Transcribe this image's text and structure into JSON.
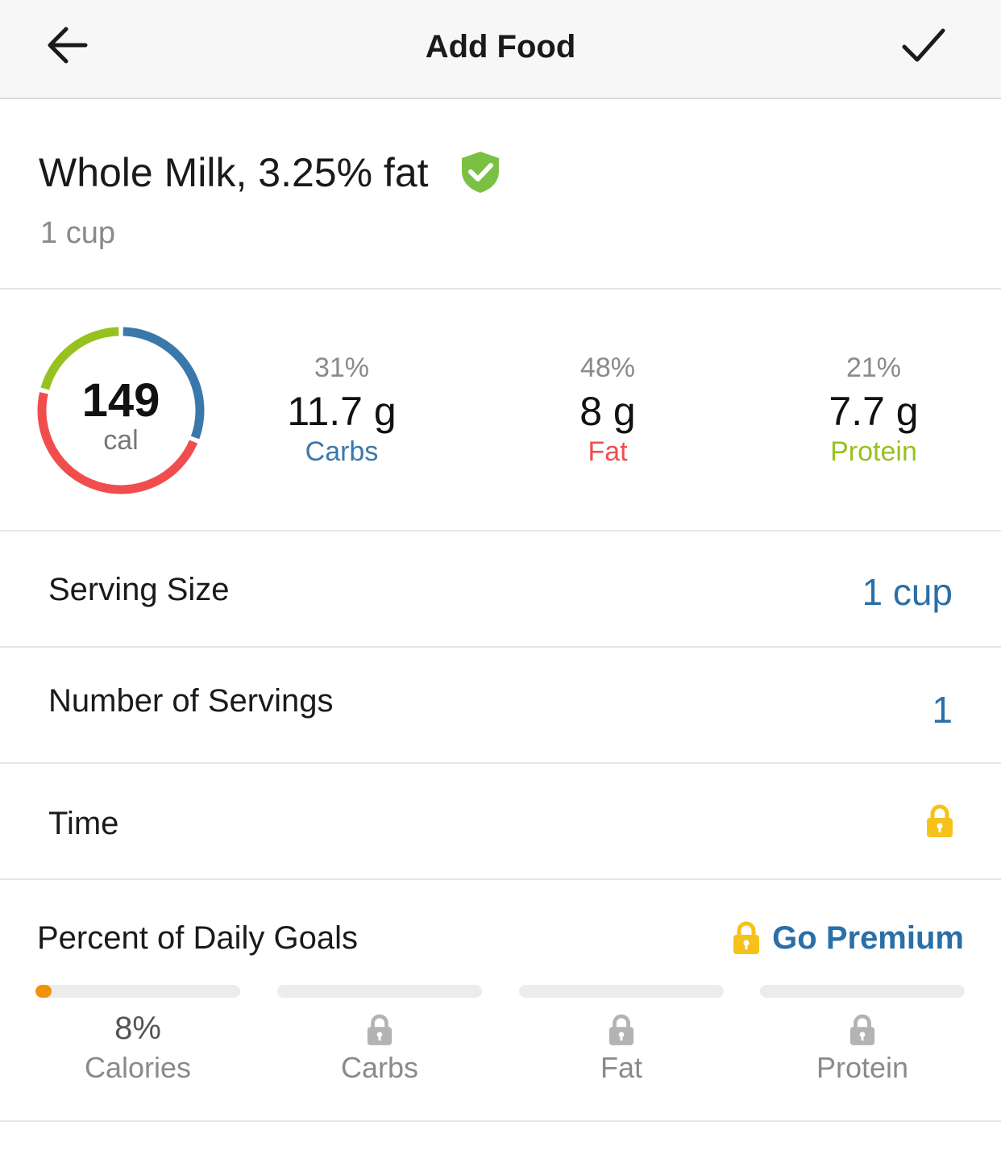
{
  "header": {
    "title": "Add Food",
    "back_icon": "arrow-left-icon",
    "confirm_icon": "checkmark-icon"
  },
  "food": {
    "name": "Whole Milk, 3.25% fat",
    "serving_desc": "1 cup",
    "verified_icon": "verified-shield-icon",
    "verified_color": "#7ac143"
  },
  "macros": {
    "calories": {
      "value": "149",
      "label": "cal"
    },
    "items": [
      {
        "pct": "31%",
        "amount": "11.7 g",
        "label": "Carbs",
        "color": "#3a78ab",
        "fraction": 0.31
      },
      {
        "pct": "48%",
        "amount": "8 g",
        "label": "Fat",
        "color": "#f04e4e",
        "fraction": 0.48
      },
      {
        "pct": "21%",
        "amount": "7.7 g",
        "label": "Protein",
        "color": "#97c11f",
        "fraction": 0.21
      }
    ]
  },
  "fields": {
    "serving_size": {
      "label": "Serving Size",
      "value": "1 cup"
    },
    "servings": {
      "label": "Number of Servings",
      "value": "1"
    },
    "time": {
      "label": "Time",
      "icon": "lock-icon",
      "icon_color": "#f6c21a"
    }
  },
  "goals": {
    "heading": "Percent of Daily Goals",
    "premium_label": "Go Premium",
    "premium_icon": "lock-icon",
    "items": [
      {
        "label": "Calories",
        "value": "8%",
        "progress": 0.08,
        "locked": false
      },
      {
        "label": "Carbs",
        "locked": true
      },
      {
        "label": "Fat",
        "locked": true
      },
      {
        "label": "Protein",
        "locked": true
      }
    ],
    "progress_color": "#f2920c",
    "locked_icon_color": "#b3b3b3"
  },
  "colors": {
    "link": "#2a6fa8",
    "header_bg": "#f7f7f7"
  }
}
